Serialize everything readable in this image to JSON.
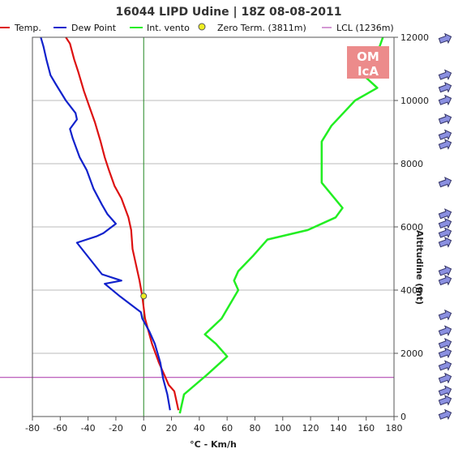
{
  "chart_data": {
    "type": "line",
    "title": "16044 LIPD Udine | 18Z 08-08-2011",
    "xlabel": "°C - Km/h",
    "ylabel": "Altitudine (mt)",
    "xlim": [
      -80,
      180
    ],
    "ylim": [
      0,
      12000
    ],
    "x_ticks": [
      "-80",
      "-60",
      "-40",
      "-20",
      "0",
      "20",
      "40",
      "60",
      "80",
      "100",
      "120",
      "140",
      "160",
      "180"
    ],
    "y_ticks": [
      "0",
      "2000",
      "4000",
      "6000",
      "8000",
      "10000",
      "12000"
    ],
    "grid": true,
    "legend_position": "top",
    "series": [
      {
        "name": "Temp.",
        "color": "#dd1111",
        "points": [
          [
            25,
            200
          ],
          [
            24,
            400
          ],
          [
            22,
            800
          ],
          [
            18,
            1000
          ],
          [
            15,
            1300
          ],
          [
            11,
            1700
          ],
          [
            6,
            2300
          ],
          [
            1,
            3100
          ],
          [
            -1,
            3800
          ],
          [
            -3,
            4300
          ],
          [
            -8,
            5300
          ],
          [
            -9,
            5900
          ],
          [
            -11,
            6300
          ],
          [
            -16,
            6900
          ],
          [
            -21,
            7300
          ],
          [
            -25,
            7800
          ],
          [
            -28,
            8200
          ],
          [
            -31,
            8700
          ],
          [
            -35,
            9300
          ],
          [
            -39,
            9800
          ],
          [
            -43,
            10300
          ],
          [
            -47,
            10900
          ],
          [
            -50,
            11300
          ],
          [
            -53,
            11800
          ],
          [
            -56,
            12000
          ]
        ]
      },
      {
        "name": "Dew Point",
        "color": "#1122cc",
        "points": [
          [
            19,
            200
          ],
          [
            17,
            700
          ],
          [
            14,
            1200
          ],
          [
            12,
            1700
          ],
          [
            8,
            2300
          ],
          [
            4,
            2700
          ],
          [
            -1,
            3100
          ],
          [
            -2,
            3300
          ],
          [
            -17,
            3800
          ],
          [
            -28,
            4200
          ],
          [
            -16,
            4300
          ],
          [
            -30,
            4500
          ],
          [
            -48,
            5500
          ],
          [
            -34,
            5700
          ],
          [
            -29,
            5800
          ],
          [
            -20,
            6100
          ],
          [
            -26,
            6400
          ],
          [
            -30,
            6700
          ],
          [
            -36,
            7200
          ],
          [
            -41,
            7800
          ],
          [
            -46,
            8200
          ],
          [
            -51,
            8800
          ],
          [
            -53,
            9100
          ],
          [
            -48,
            9400
          ],
          [
            -49,
            9600
          ],
          [
            -56,
            10000
          ],
          [
            -63,
            10500
          ],
          [
            -67,
            10800
          ],
          [
            -70,
            11300
          ],
          [
            -72,
            11700
          ],
          [
            -74,
            12000
          ]
        ]
      },
      {
        "name": "Int. vento",
        "color": "#22ee22",
        "points": [
          [
            26,
            100
          ],
          [
            29,
            700
          ],
          [
            45,
            1300
          ],
          [
            60,
            1900
          ],
          [
            52,
            2300
          ],
          [
            44,
            2600
          ],
          [
            56,
            3100
          ],
          [
            68,
            4000
          ],
          [
            65,
            4300
          ],
          [
            68,
            4600
          ],
          [
            79,
            5100
          ],
          [
            89,
            5600
          ],
          [
            118,
            5900
          ],
          [
            138,
            6300
          ],
          [
            143,
            6600
          ],
          [
            128,
            7400
          ],
          [
            128,
            8200
          ],
          [
            128,
            8700
          ],
          [
            135,
            9200
          ],
          [
            152,
            10000
          ],
          [
            168,
            10400
          ],
          [
            158,
            10800
          ],
          [
            168,
            11500
          ],
          [
            172,
            12000
          ]
        ]
      }
    ],
    "markers": [
      {
        "name": "Zero Term. (3811m)",
        "color": "#eeee22",
        "x": 0,
        "y": 3811
      }
    ],
    "reference_lines": [
      {
        "name": "LCL (1236m)",
        "color": "#aa33aa",
        "y": 1236
      }
    ],
    "wind_barb_altitudes": [
      0,
      500,
      800,
      1200,
      1600,
      2000,
      2300,
      2700,
      3200,
      4300,
      4600,
      5500,
      5800,
      6100,
      6400,
      7400,
      8600,
      8900,
      9400,
      10000,
      10400,
      10800,
      12000
    ]
  },
  "logo": {
    "line1": "OM",
    "line2": "IcA"
  }
}
